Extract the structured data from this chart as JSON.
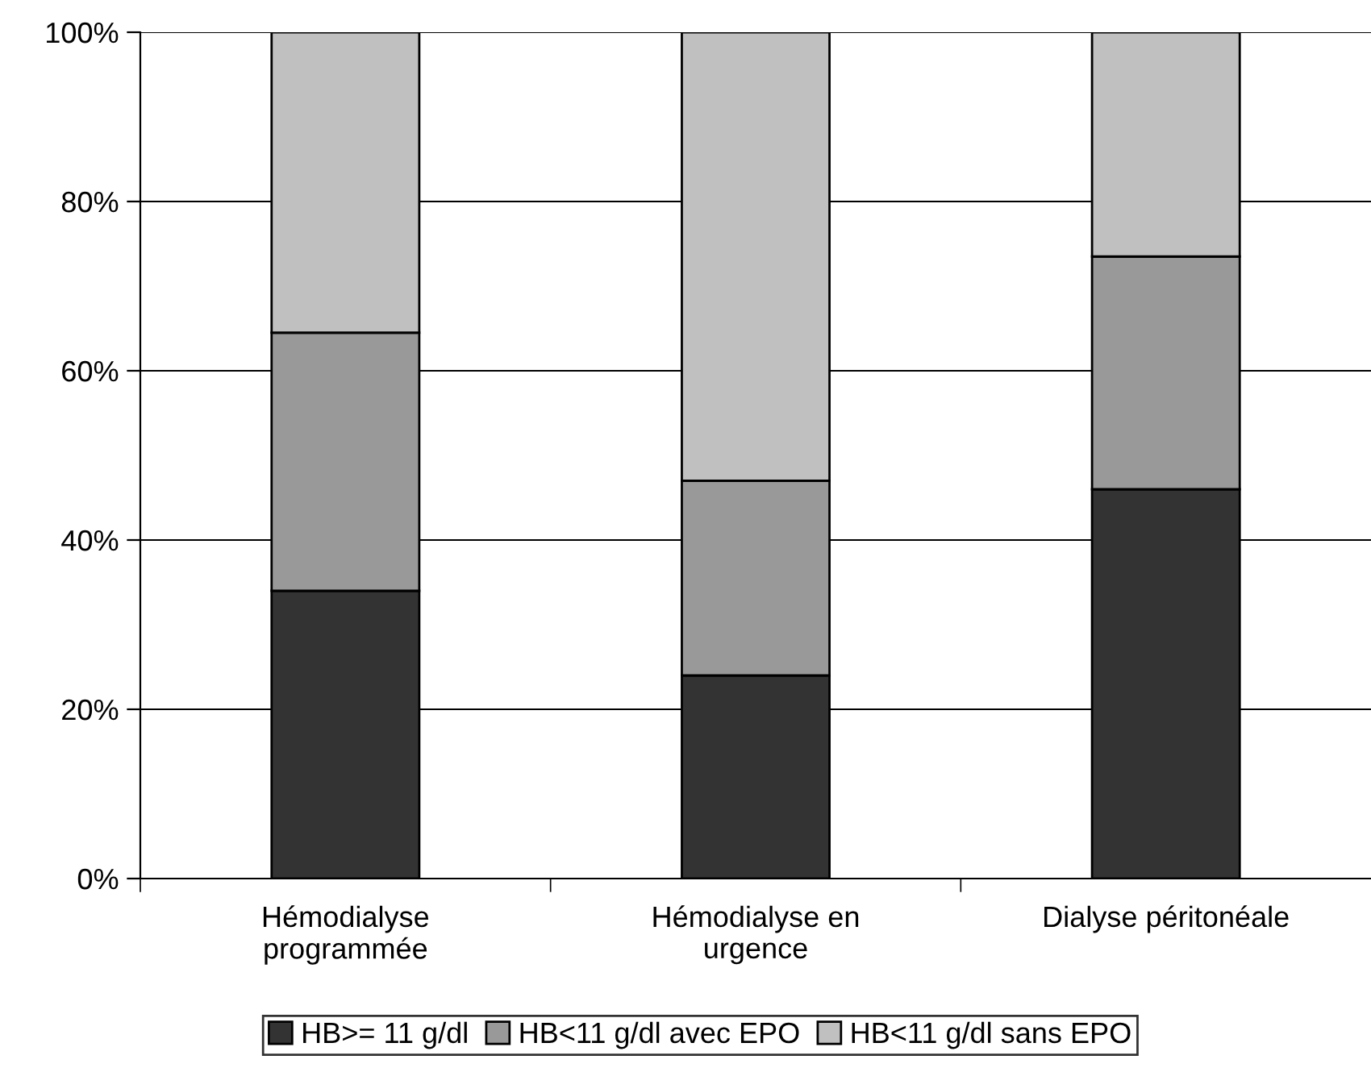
{
  "chart_data": {
    "type": "bar",
    "stacked": true,
    "categories": [
      "Hémodialyse\nprogrammée",
      "Hémodialyse en\nurgence",
      "Dialyse péritonéale"
    ],
    "series": [
      {
        "name": "HB>= 11 g/dl",
        "color": "#333333",
        "values": [
          34,
          24,
          46
        ]
      },
      {
        "name": "HB<11 g/dl avec EPO",
        "color": "#999999",
        "values": [
          30.5,
          23,
          27.5
        ]
      },
      {
        "name": "HB<11 g/dl sans EPO",
        "color": "#c0c0c0",
        "values": [
          35.5,
          53,
          26.5
        ]
      }
    ],
    "ylim": [
      0,
      100
    ],
    "yticks": [
      {
        "value": 0,
        "label": "0%"
      },
      {
        "value": 20,
        "label": "20%"
      },
      {
        "value": 40,
        "label": "40%"
      },
      {
        "value": 60,
        "label": "60%"
      },
      {
        "value": 80,
        "label": "80%"
      },
      {
        "value": 100,
        "label": "100%"
      }
    ],
    "grid": "y",
    "legend": "bottom"
  }
}
